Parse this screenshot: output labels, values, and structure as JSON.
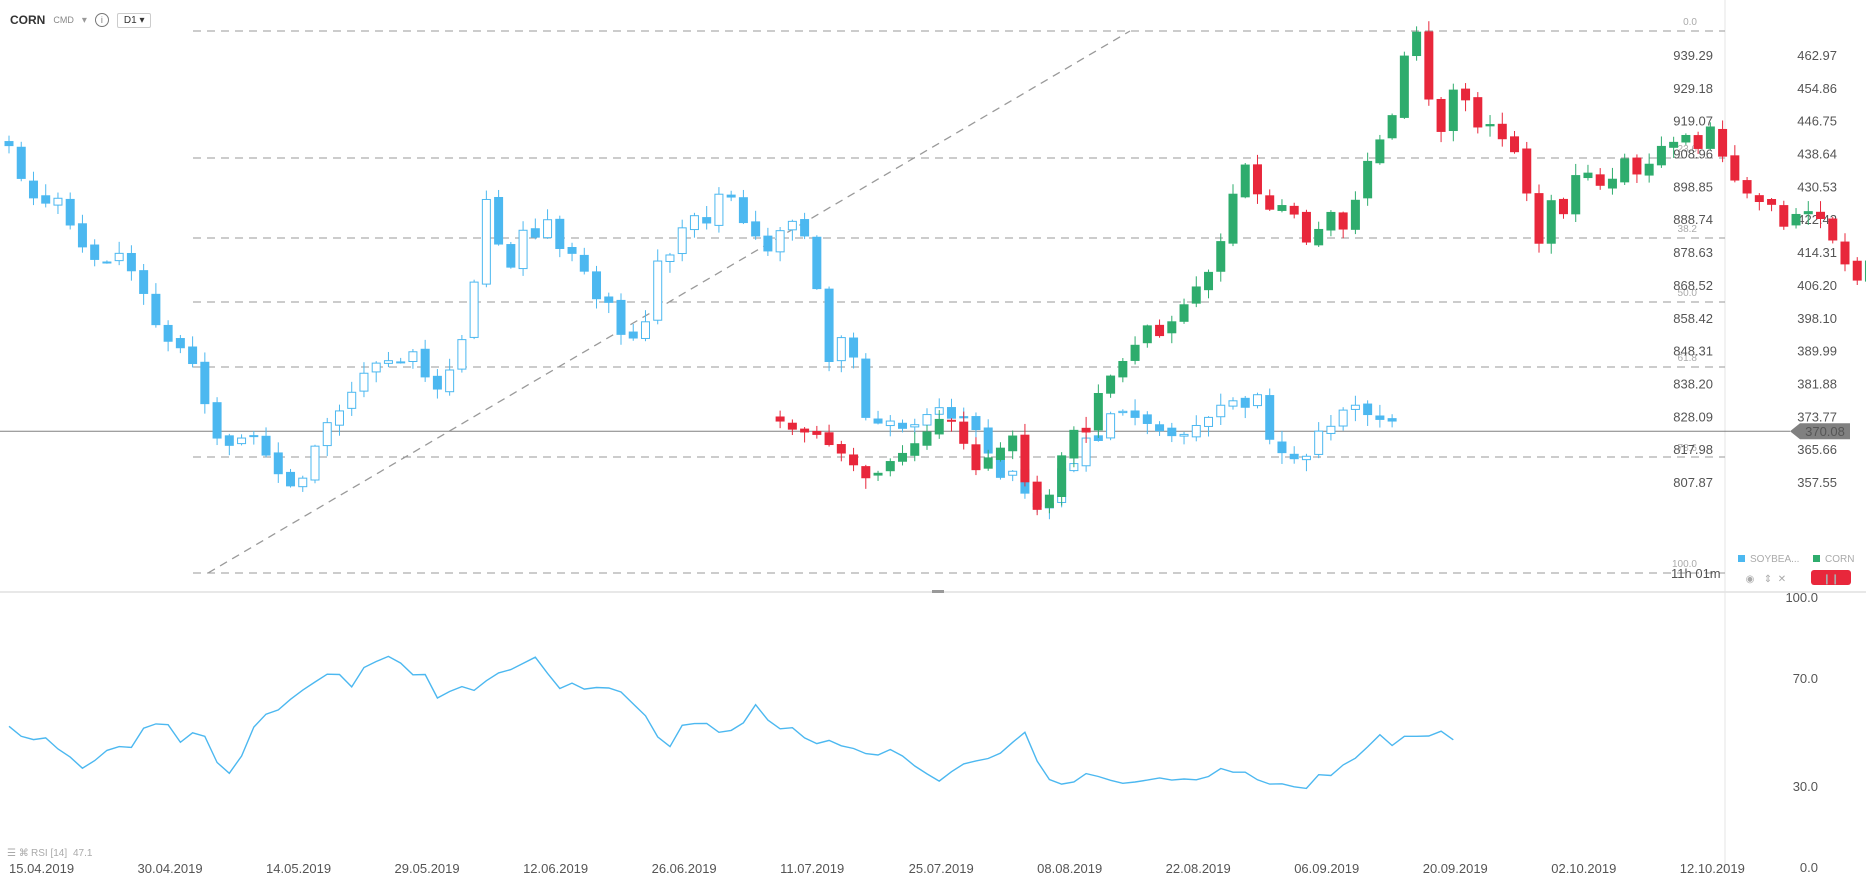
{
  "header": {
    "symbol": "CORN",
    "type": "CMD",
    "timeframe": "D1"
  },
  "price_badge": "370.08",
  "countdown": "11h 01m",
  "legend": {
    "main": "CORN",
    "overlay": "SOYBEA..."
  },
  "rsi_label": "RSI [14]",
  "rsi_value": "47.1",
  "colors": {
    "up": "#2eac6d",
    "down": "#e8273b",
    "overlay": "#4cb8f0",
    "price_badge": "#808080",
    "countdown": "#e6a700"
  },
  "chart_data": [
    {
      "type": "candlestick",
      "series": [
        {
          "name": "CORN"
        },
        {
          "name": "SOYBEA..."
        }
      ],
      "y_left_ticks": [
        "939.29",
        "929.18",
        "919.07",
        "908.96",
        "898.85",
        "888.74",
        "878.63",
        "868.52",
        "858.42",
        "848.31",
        "838.20",
        "828.09",
        "817.98",
        "807.87"
      ],
      "y_right_ticks": [
        "462.97",
        "454.86",
        "446.75",
        "438.64",
        "430.53",
        "422.42",
        "414.31",
        "406.20",
        "398.10",
        "389.99",
        "381.88",
        "373.77",
        "365.66",
        "357.55"
      ],
      "x_ticks": [
        "15.04.2019",
        "30.04.2019",
        "14.05.2019",
        "29.05.2019",
        "12.06.2019",
        "26.06.2019",
        "11.07.2019",
        "25.07.2019",
        "08.08.2019",
        "22.08.2019",
        "06.09.2019",
        "20.09.2019",
        "02.10.2019",
        "12.10.2019"
      ],
      "fibonacci": [
        "0.0",
        "23.6",
        "38.2",
        "50.0",
        "61.8",
        "78.6",
        "100.0"
      ]
    },
    {
      "type": "line",
      "name": "RSI [14]",
      "y_ticks": [
        "100.0",
        "70.0",
        "30.0",
        "0.0"
      ],
      "ylim": [
        0,
        100
      ]
    }
  ]
}
